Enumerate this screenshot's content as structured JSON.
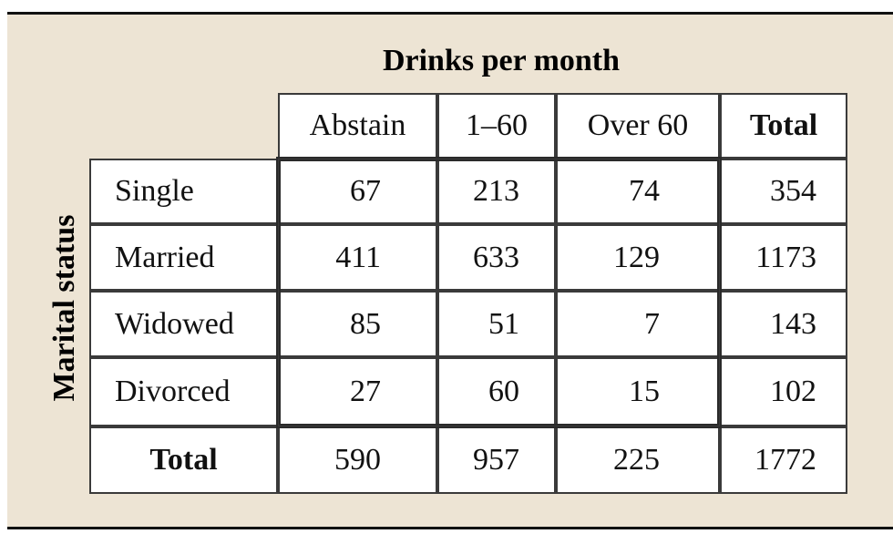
{
  "title": "Drinks per month",
  "side_label": "Marital status",
  "columns": [
    "Abstain",
    "1–60",
    "Over 60",
    "Total"
  ],
  "rows": [
    {
      "label": "Single",
      "values": [
        "67",
        "213",
        "74",
        "354"
      ]
    },
    {
      "label": "Married",
      "values": [
        "411",
        "633",
        "129",
        "1173"
      ]
    },
    {
      "label": "Widowed",
      "values": [
        "85",
        "51",
        "7",
        "143"
      ]
    },
    {
      "label": "Divorced",
      "values": [
        "27",
        "60",
        "15",
        "102"
      ]
    }
  ],
  "total_row": {
    "label": "Total",
    "values": [
      "590",
      "957",
      "225",
      "1772"
    ]
  }
}
